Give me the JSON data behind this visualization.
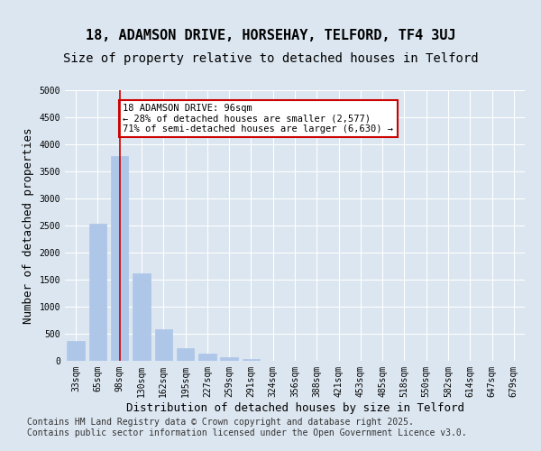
{
  "title1": "18, ADAMSON DRIVE, HORSEHAY, TELFORD, TF4 3UJ",
  "title2": "Size of property relative to detached houses in Telford",
  "xlabel": "Distribution of detached houses by size in Telford",
  "ylabel": "Number of detached properties",
  "categories": [
    "33sqm",
    "65sqm",
    "98sqm",
    "130sqm",
    "162sqm",
    "195sqm",
    "227sqm",
    "259sqm",
    "291sqm",
    "324sqm",
    "356sqm",
    "388sqm",
    "421sqm",
    "453sqm",
    "485sqm",
    "518sqm",
    "550sqm",
    "582sqm",
    "614sqm",
    "647sqm",
    "679sqm"
  ],
  "values": [
    370,
    2530,
    3780,
    1620,
    580,
    230,
    130,
    60,
    30,
    0,
    0,
    0,
    0,
    0,
    0,
    0,
    0,
    0,
    0,
    0,
    0
  ],
  "bar_color": "#aec6e8",
  "bar_edgecolor": "#aec6e8",
  "vline_x": 2,
  "vline_color": "#cc0000",
  "ylim": [
    0,
    5000
  ],
  "yticks": [
    0,
    500,
    1000,
    1500,
    2000,
    2500,
    3000,
    3500,
    4000,
    4500,
    5000
  ],
  "annotation_text": "18 ADAMSON DRIVE: 96sqm\n← 28% of detached houses are smaller (2,577)\n71% of semi-detached houses are larger (6,630) →",
  "annotation_box_color": "#ffffff",
  "annotation_box_edgecolor": "#cc0000",
  "footer_text": "Contains HM Land Registry data © Crown copyright and database right 2025.\nContains public sector information licensed under the Open Government Licence v3.0.",
  "background_color": "#dce6f0",
  "plot_background_color": "#dce6f0",
  "grid_color": "#ffffff",
  "title_fontsize": 11,
  "subtitle_fontsize": 10,
  "tick_fontsize": 7,
  "ylabel_fontsize": 9,
  "xlabel_fontsize": 9,
  "footer_fontsize": 7
}
